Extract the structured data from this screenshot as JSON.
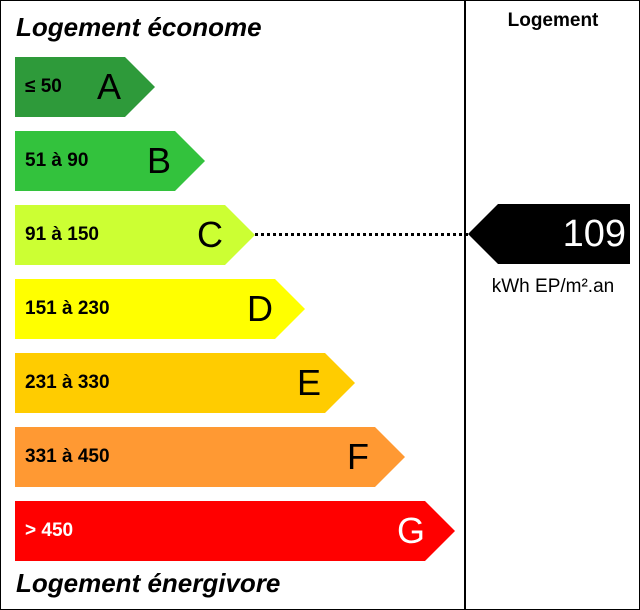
{
  "labels": {
    "top": "Logement économe",
    "bottom": "Logement énergivore",
    "column_header": "Logement"
  },
  "bands": [
    {
      "letter": "A",
      "range": "≤ 50",
      "color": "#2e9a3a"
    },
    {
      "letter": "B",
      "range": "51 à 90",
      "color": "#33c23d"
    },
    {
      "letter": "C",
      "range": "91 à 150",
      "color": "#ccff33"
    },
    {
      "letter": "D",
      "range": "151 à 230",
      "color": "#ffff00"
    },
    {
      "letter": "E",
      "range": "231 à 330",
      "color": "#ffcc00"
    },
    {
      "letter": "F",
      "range": "331 à 450",
      "color": "#ff9933"
    },
    {
      "letter": "G",
      "range": "> 450",
      "color": "#ff0000"
    }
  ],
  "result": {
    "value": "109",
    "unit": "kWh EP/m².an",
    "band": "C"
  }
}
